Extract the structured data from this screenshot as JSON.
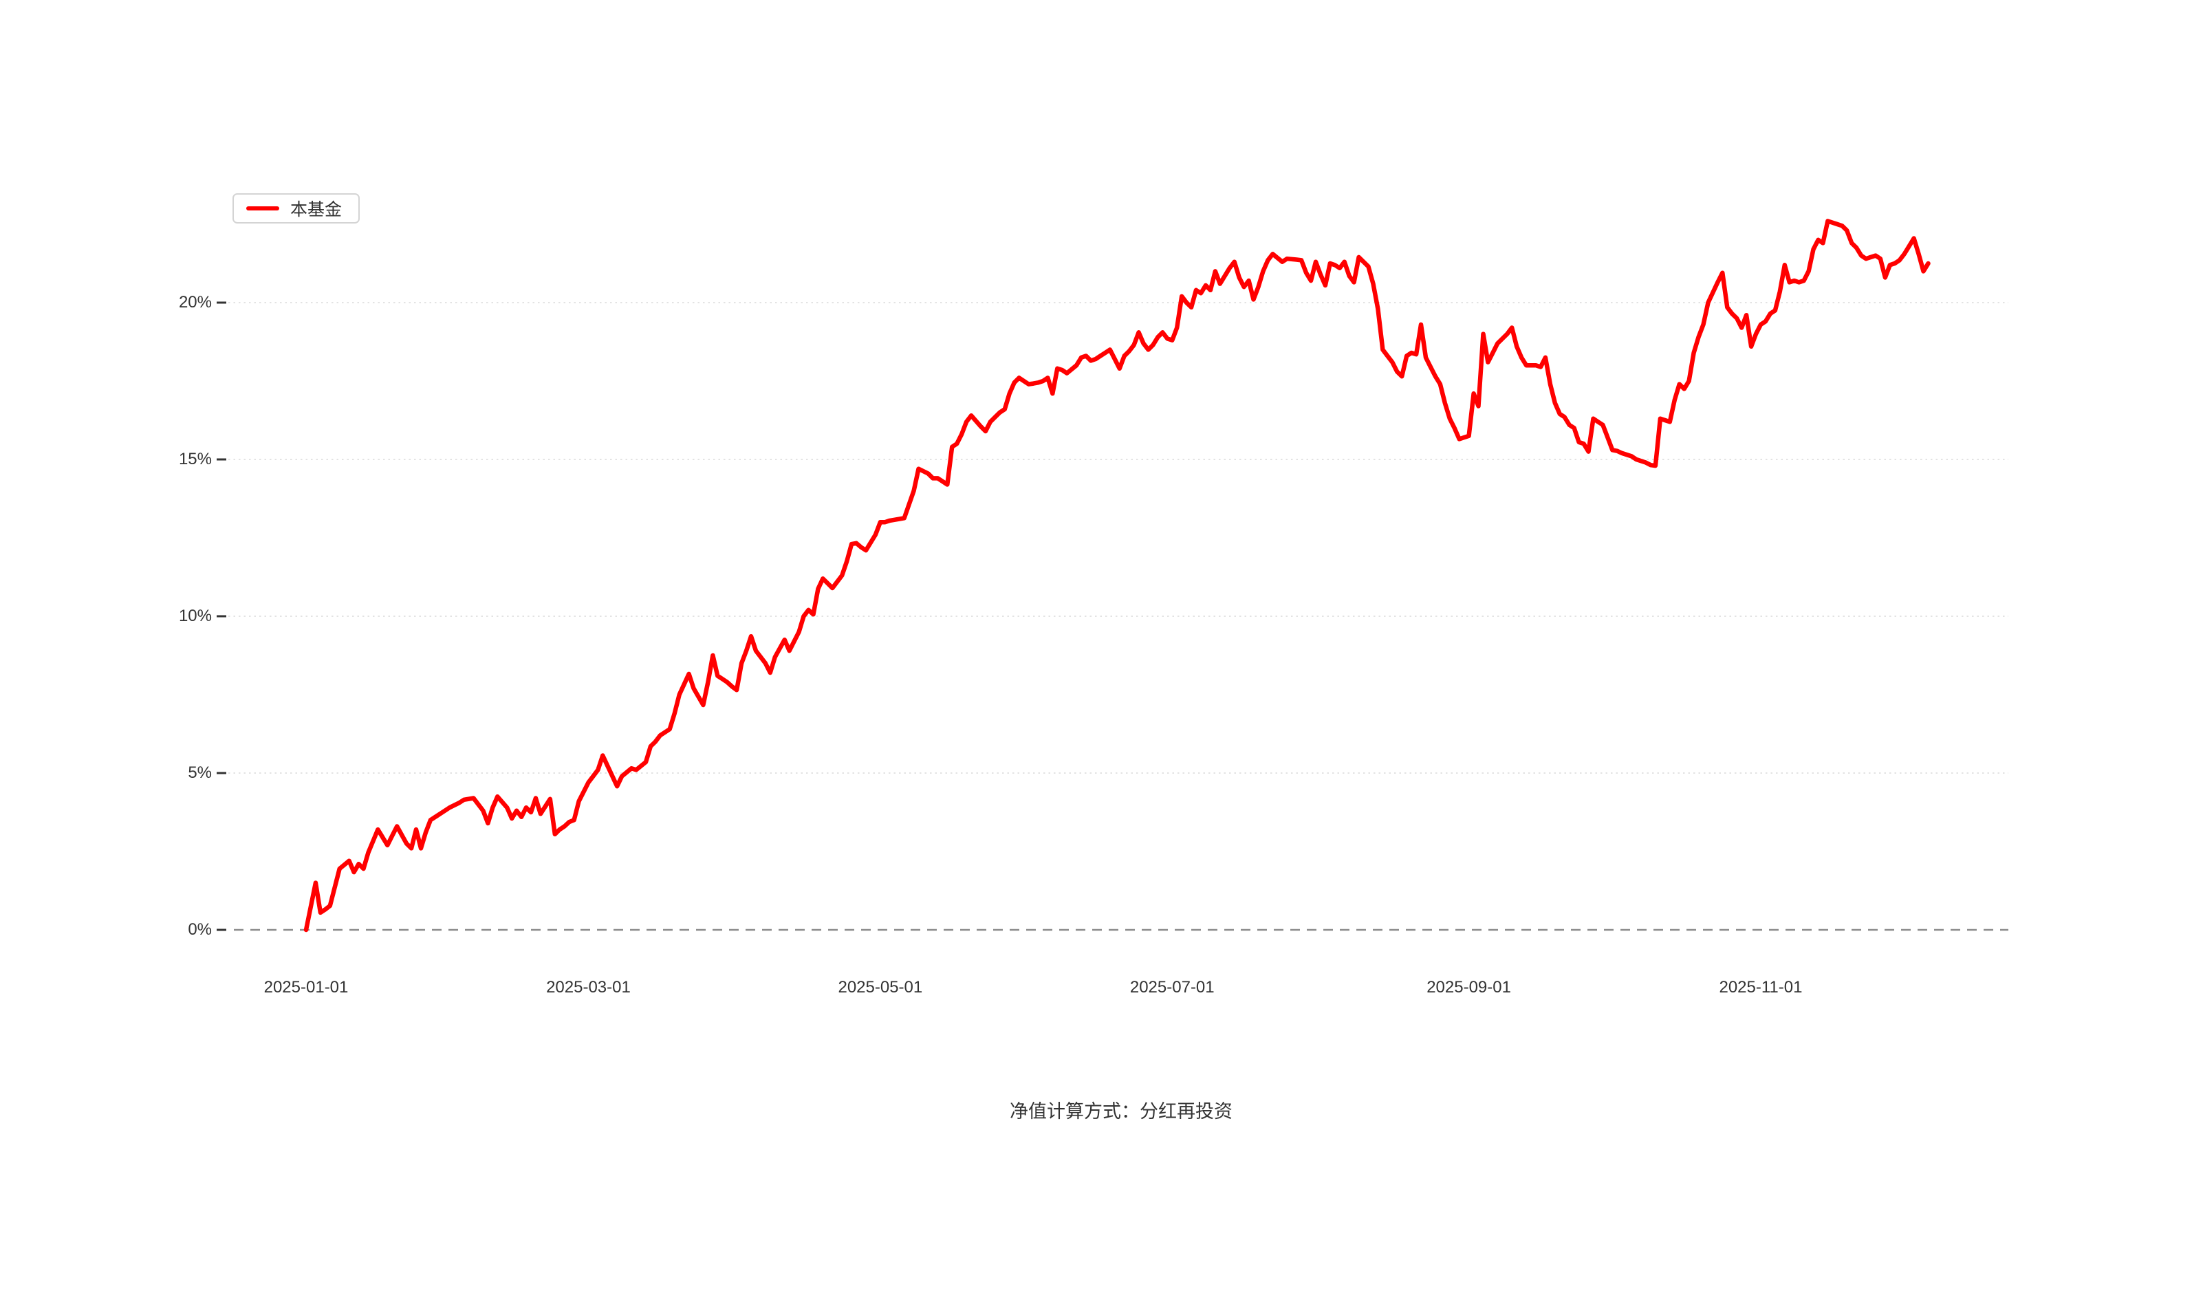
{
  "legend": {
    "label": "本基金"
  },
  "caption": {
    "text": "净值计算方式：分红再投资"
  },
  "colors": {
    "series": "#ff0000",
    "zero_line": "#8c8c8c",
    "grid": "#e3e3e3",
    "tick": "#333333",
    "text": "#333333",
    "legend_border": "#d4d4d4",
    "background": "#ffffff"
  },
  "chart_data": {
    "type": "line",
    "title": "",
    "xlabel": "",
    "ylabel": "",
    "x_start_date": "2025-01-01",
    "x_unit": "days_since_2025-01-01",
    "y_unit": "%",
    "ylim": [
      0,
      25
    ],
    "grid": "horizontal-dotted",
    "legend_position": "top-left",
    "zero_baseline_style": "dashed",
    "y_ticks": [
      {
        "label": "0%",
        "value": 0
      },
      {
        "label": "5%",
        "value": 5
      },
      {
        "label": "10%",
        "value": 10
      },
      {
        "label": "15%",
        "value": 15
      },
      {
        "label": "20%",
        "value": 20
      }
    ],
    "x_ticks": [
      {
        "label": "2025-01-01",
        "day": 0
      },
      {
        "label": "2025-03-01",
        "day": 59
      },
      {
        "label": "2025-05-01",
        "day": 120
      },
      {
        "label": "2025-07-01",
        "day": 181
      },
      {
        "label": "2025-09-01",
        "day": 243
      },
      {
        "label": "2025-11-01",
        "day": 304
      }
    ],
    "series": [
      {
        "name": "本基金",
        "color": "#ff0000",
        "unit": "%",
        "points": [
          [
            0,
            0
          ],
          [
            2,
            1.5
          ],
          [
            3,
            0.55
          ],
          [
            4,
            0.65
          ],
          [
            5,
            0.77
          ],
          [
            7,
            1.95
          ],
          [
            9,
            2.2
          ],
          [
            10,
            1.84
          ],
          [
            11,
            2.1
          ],
          [
            12,
            1.95
          ],
          [
            13,
            2.46
          ],
          [
            15,
            3.2
          ],
          [
            17,
            2.7
          ],
          [
            18,
            3.0
          ],
          [
            19,
            3.3
          ],
          [
            21,
            2.75
          ],
          [
            22,
            2.6
          ],
          [
            23,
            3.2
          ],
          [
            24,
            2.6
          ],
          [
            25,
            3.1
          ],
          [
            26,
            3.5
          ],
          [
            28,
            3.7
          ],
          [
            30,
            3.9
          ],
          [
            32,
            4.05
          ],
          [
            33,
            4.15
          ],
          [
            35,
            4.2
          ],
          [
            37,
            3.8
          ],
          [
            38,
            3.4
          ],
          [
            39,
            3.9
          ],
          [
            40,
            4.25
          ],
          [
            42,
            3.9
          ],
          [
            43,
            3.55
          ],
          [
            44,
            3.8
          ],
          [
            45,
            3.6
          ],
          [
            46,
            3.9
          ],
          [
            47,
            3.75
          ],
          [
            48,
            4.2
          ],
          [
            49,
            3.7
          ],
          [
            51,
            4.17
          ],
          [
            52,
            3.05
          ],
          [
            53,
            3.2
          ],
          [
            54,
            3.3
          ],
          [
            55,
            3.44
          ],
          [
            56,
            3.5
          ],
          [
            57,
            4.1
          ],
          [
            59,
            4.7
          ],
          [
            60,
            4.9
          ],
          [
            61,
            5.1
          ],
          [
            62,
            5.56
          ],
          [
            65,
            4.58
          ],
          [
            66,
            4.9
          ],
          [
            68,
            5.15
          ],
          [
            69,
            5.1
          ],
          [
            71,
            5.35
          ],
          [
            72,
            5.85
          ],
          [
            73,
            6.0
          ],
          [
            74,
            6.2
          ],
          [
            76,
            6.4
          ],
          [
            77,
            6.9
          ],
          [
            78,
            7.5
          ],
          [
            80,
            8.16
          ],
          [
            81,
            7.7
          ],
          [
            83,
            7.17
          ],
          [
            84,
            7.9
          ],
          [
            85,
            8.75
          ],
          [
            86,
            8.1
          ],
          [
            87,
            8.0
          ],
          [
            88,
            7.9
          ],
          [
            89,
            7.76
          ],
          [
            90,
            7.65
          ],
          [
            91,
            8.5
          ],
          [
            92,
            8.9
          ],
          [
            93,
            9.36
          ],
          [
            94,
            8.9
          ],
          [
            96,
            8.5
          ],
          [
            97,
            8.2
          ],
          [
            98,
            8.7
          ],
          [
            100,
            9.25
          ],
          [
            101,
            8.9
          ],
          [
            102,
            9.2
          ],
          [
            103,
            9.5
          ],
          [
            104,
            10.0
          ],
          [
            105,
            10.2
          ],
          [
            106,
            10.06
          ],
          [
            107,
            10.87
          ],
          [
            108,
            11.2
          ],
          [
            109,
            11.05
          ],
          [
            110,
            10.9
          ],
          [
            112,
            11.3
          ],
          [
            113,
            11.75
          ],
          [
            114,
            12.3
          ],
          [
            115,
            12.33
          ],
          [
            116,
            12.2
          ],
          [
            117,
            12.1
          ],
          [
            119,
            12.6
          ],
          [
            120,
            13.0
          ],
          [
            121,
            13.0
          ],
          [
            122,
            13.05
          ],
          [
            124,
            13.1
          ],
          [
            125,
            13.13
          ],
          [
            127,
            14.0
          ],
          [
            128,
            14.7
          ],
          [
            130,
            14.55
          ],
          [
            131,
            14.4
          ],
          [
            132,
            14.4
          ],
          [
            133,
            14.3
          ],
          [
            134,
            14.2
          ],
          [
            135,
            15.4
          ],
          [
            136,
            15.5
          ],
          [
            137,
            15.8
          ],
          [
            138,
            16.2
          ],
          [
            139,
            16.4
          ],
          [
            141,
            16.05
          ],
          [
            142,
            15.9
          ],
          [
            143,
            16.2
          ],
          [
            144,
            16.35
          ],
          [
            145,
            16.5
          ],
          [
            146,
            16.6
          ],
          [
            147,
            17.1
          ],
          [
            148,
            17.45
          ],
          [
            149,
            17.6
          ],
          [
            150,
            17.5
          ],
          [
            151,
            17.4
          ],
          [
            152,
            17.42
          ],
          [
            153,
            17.45
          ],
          [
            154,
            17.5
          ],
          [
            155,
            17.6
          ],
          [
            156,
            17.1
          ],
          [
            157,
            17.9
          ],
          [
            158,
            17.85
          ],
          [
            159,
            17.75
          ],
          [
            161,
            18.0
          ],
          [
            162,
            18.25
          ],
          [
            163,
            18.3
          ],
          [
            164,
            18.15
          ],
          [
            165,
            18.2
          ],
          [
            166,
            18.3
          ],
          [
            167,
            18.4
          ],
          [
            168,
            18.5
          ],
          [
            169,
            18.2
          ],
          [
            170,
            17.9
          ],
          [
            171,
            18.3
          ],
          [
            172,
            18.45
          ],
          [
            173,
            18.65
          ],
          [
            174,
            19.05
          ],
          [
            175,
            18.7
          ],
          [
            176,
            18.5
          ],
          [
            177,
            18.65
          ],
          [
            178,
            18.9
          ],
          [
            179,
            19.05
          ],
          [
            180,
            18.85
          ],
          [
            181,
            18.8
          ],
          [
            182,
            19.2
          ],
          [
            183,
            20.2
          ],
          [
            184,
            20.0
          ],
          [
            185,
            19.85
          ],
          [
            186,
            20.4
          ],
          [
            187,
            20.3
          ],
          [
            188,
            20.55
          ],
          [
            189,
            20.4
          ],
          [
            190,
            21.0
          ],
          [
            191,
            20.6
          ],
          [
            193,
            21.1
          ],
          [
            194,
            21.3
          ],
          [
            195,
            20.8
          ],
          [
            196,
            20.5
          ],
          [
            197,
            20.7
          ],
          [
            198,
            20.1
          ],
          [
            199,
            20.5
          ],
          [
            200,
            21.0
          ],
          [
            201,
            21.35
          ],
          [
            202,
            21.55
          ],
          [
            204,
            21.3
          ],
          [
            205,
            21.4
          ],
          [
            207,
            21.37
          ],
          [
            208,
            21.35
          ],
          [
            209,
            20.95
          ],
          [
            210,
            20.7
          ],
          [
            211,
            21.3
          ],
          [
            212,
            20.9
          ],
          [
            213,
            20.55
          ],
          [
            214,
            21.25
          ],
          [
            215,
            21.2
          ],
          [
            216,
            21.1
          ],
          [
            217,
            21.3
          ],
          [
            218,
            20.85
          ],
          [
            219,
            20.65
          ],
          [
            220,
            21.45
          ],
          [
            221,
            21.3
          ],
          [
            222,
            21.15
          ],
          [
            223,
            20.6
          ],
          [
            224,
            19.8
          ],
          [
            225,
            18.5
          ],
          [
            226,
            18.3
          ],
          [
            227,
            18.1
          ],
          [
            228,
            17.8
          ],
          [
            229,
            17.65
          ],
          [
            230,
            18.3
          ],
          [
            231,
            18.4
          ],
          [
            232,
            18.35
          ],
          [
            233,
            19.3
          ],
          [
            234,
            18.25
          ],
          [
            235,
            17.95
          ],
          [
            236,
            17.65
          ],
          [
            237,
            17.4
          ],
          [
            238,
            16.8
          ],
          [
            239,
            16.3
          ],
          [
            240,
            16.0
          ],
          [
            241,
            15.65
          ],
          [
            242,
            15.7
          ],
          [
            243,
            15.75
          ],
          [
            244,
            17.1
          ],
          [
            245,
            16.7
          ],
          [
            246,
            19.0
          ],
          [
            247,
            18.1
          ],
          [
            248,
            18.4
          ],
          [
            249,
            18.7
          ],
          [
            251,
            19.0
          ],
          [
            252,
            19.2
          ],
          [
            253,
            18.6
          ],
          [
            254,
            18.25
          ],
          [
            255,
            18.0
          ],
          [
            257,
            18.0
          ],
          [
            258,
            17.95
          ],
          [
            259,
            18.25
          ],
          [
            260,
            17.4
          ],
          [
            261,
            16.8
          ],
          [
            262,
            16.45
          ],
          [
            263,
            16.35
          ],
          [
            264,
            16.1
          ],
          [
            265,
            16.0
          ],
          [
            266,
            15.55
          ],
          [
            267,
            15.5
          ],
          [
            268,
            15.25
          ],
          [
            269,
            16.3
          ],
          [
            270,
            16.2
          ],
          [
            271,
            16.1
          ],
          [
            272,
            15.7
          ],
          [
            273,
            15.3
          ],
          [
            274,
            15.27
          ],
          [
            275,
            15.2
          ],
          [
            277,
            15.1
          ],
          [
            278,
            15.0
          ],
          [
            280,
            14.9
          ],
          [
            281,
            14.82
          ],
          [
            282,
            14.8
          ],
          [
            283,
            16.3
          ],
          [
            284,
            16.25
          ],
          [
            285,
            16.2
          ],
          [
            286,
            16.9
          ],
          [
            287,
            17.4
          ],
          [
            288,
            17.25
          ],
          [
            289,
            17.5
          ],
          [
            290,
            18.4
          ],
          [
            291,
            18.9
          ],
          [
            292,
            19.3
          ],
          [
            293,
            20.0
          ],
          [
            295,
            20.65
          ],
          [
            296,
            20.95
          ],
          [
            297,
            19.85
          ],
          [
            298,
            19.65
          ],
          [
            299,
            19.5
          ],
          [
            300,
            19.2
          ],
          [
            301,
            19.6
          ],
          [
            302,
            18.6
          ],
          [
            303,
            19.0
          ],
          [
            304,
            19.3
          ],
          [
            305,
            19.4
          ],
          [
            306,
            19.65
          ],
          [
            307,
            19.75
          ],
          [
            308,
            20.35
          ],
          [
            309,
            21.2
          ],
          [
            310,
            20.65
          ],
          [
            311,
            20.7
          ],
          [
            312,
            20.65
          ],
          [
            313,
            20.7
          ],
          [
            314,
            21.0
          ],
          [
            315,
            21.7
          ],
          [
            316,
            22.0
          ],
          [
            317,
            21.9
          ],
          [
            318,
            22.6
          ],
          [
            319,
            22.55
          ],
          [
            320,
            22.5
          ],
          [
            321,
            22.45
          ],
          [
            322,
            22.3
          ],
          [
            323,
            21.9
          ],
          [
            324,
            21.75
          ],
          [
            325,
            21.5
          ],
          [
            326,
            21.4
          ],
          [
            327,
            21.45
          ],
          [
            328,
            21.5
          ],
          [
            329,
            21.4
          ],
          [
            330,
            20.8
          ],
          [
            331,
            21.2
          ],
          [
            332,
            21.25
          ],
          [
            333,
            21.35
          ],
          [
            334,
            21.55
          ],
          [
            335,
            21.8
          ],
          [
            336,
            22.05
          ],
          [
            337,
            21.55
          ],
          [
            338,
            21.0
          ],
          [
            339,
            21.25
          ]
        ]
      }
    ]
  }
}
